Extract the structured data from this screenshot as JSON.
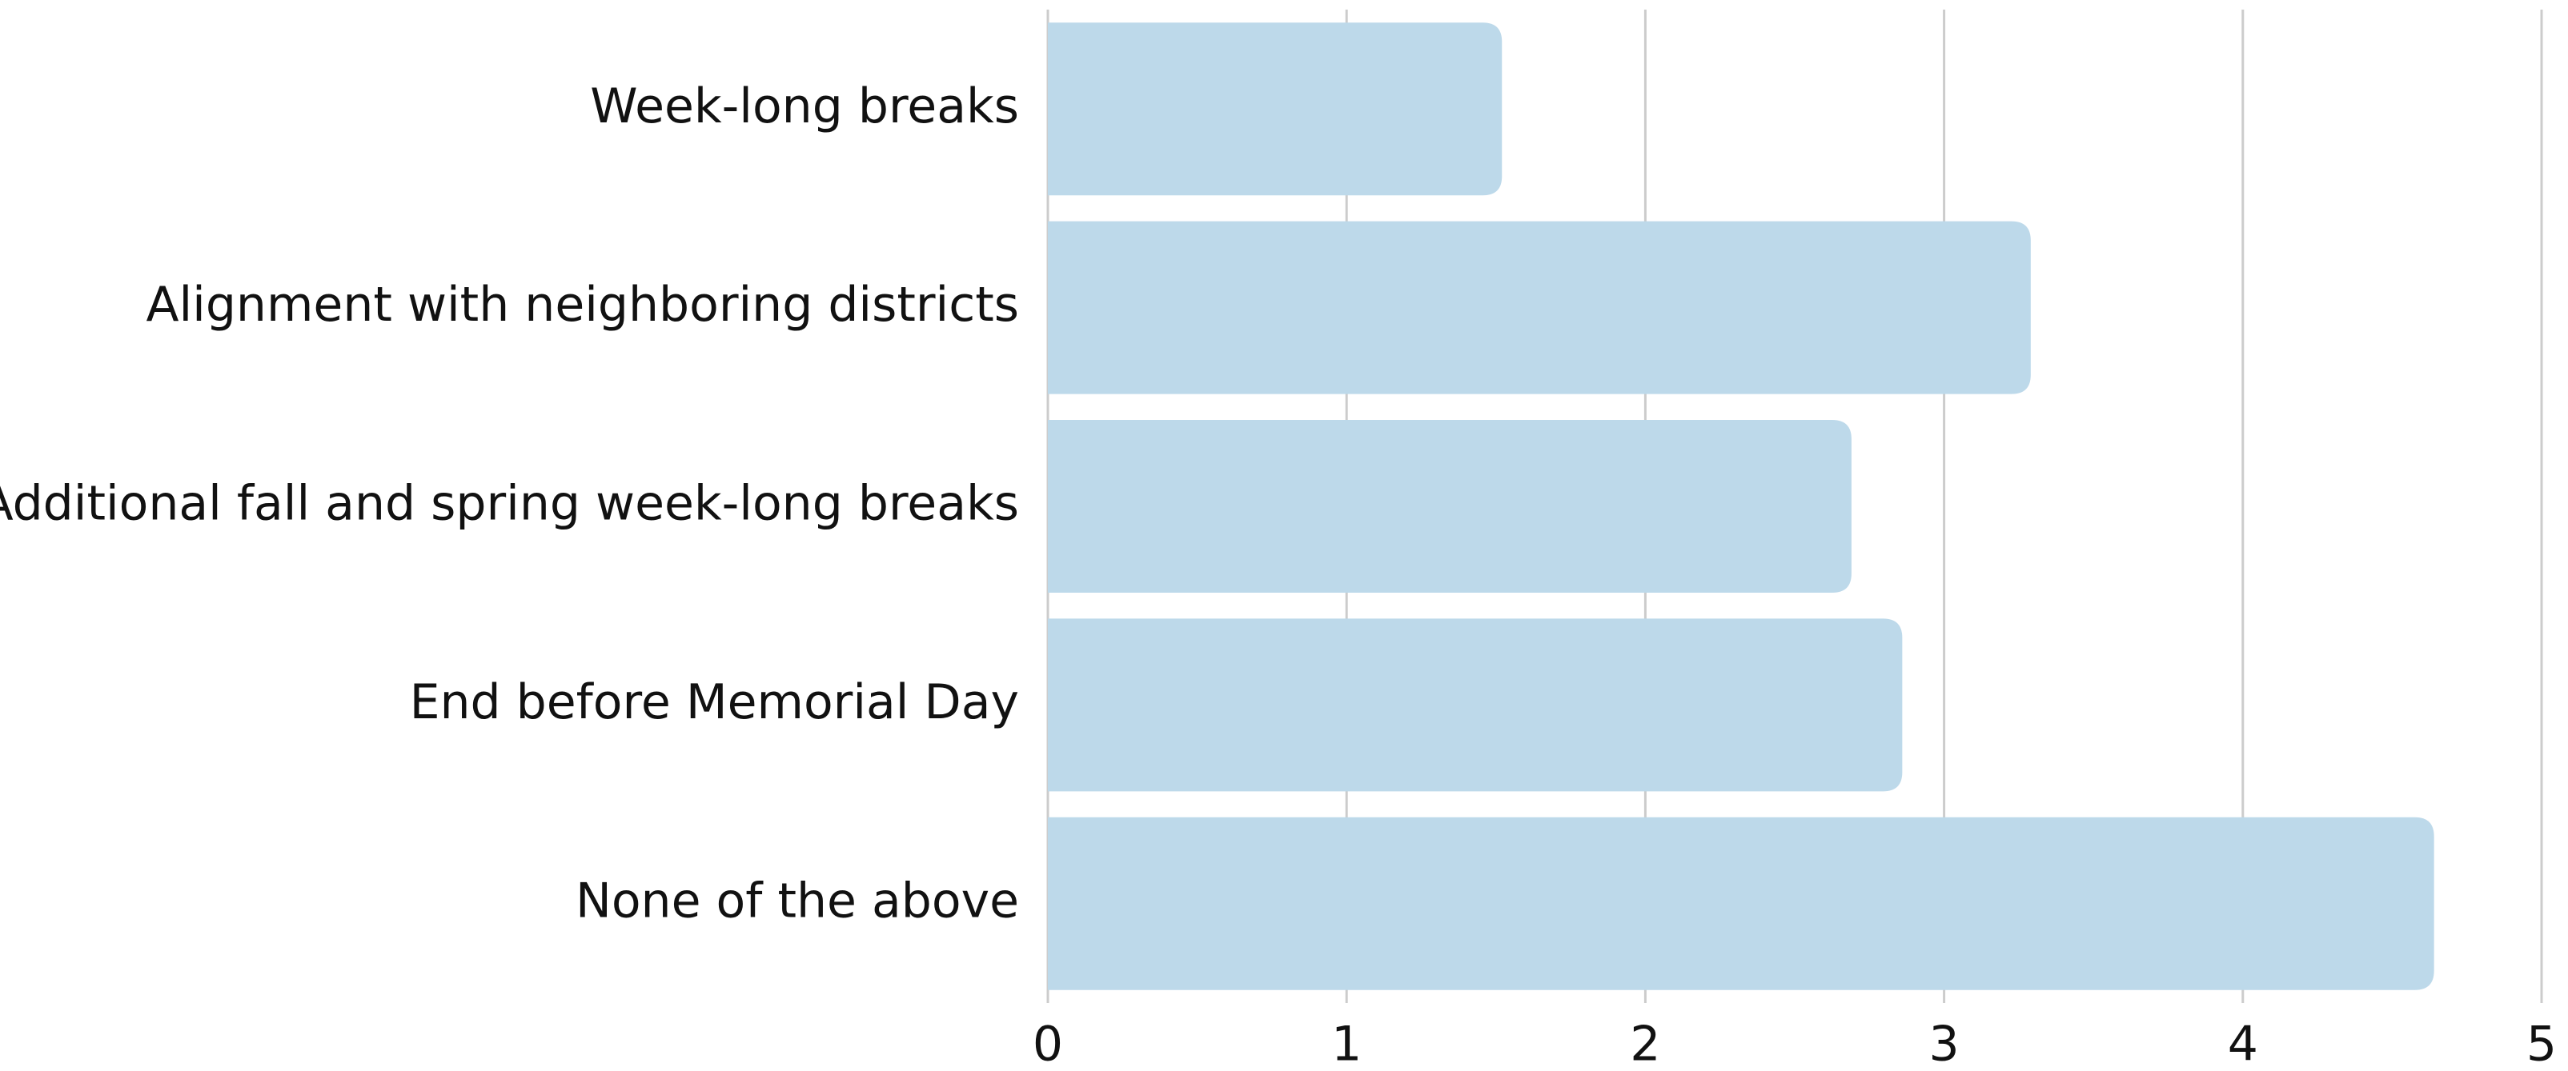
{
  "chart_data": {
    "type": "bar",
    "orientation": "horizontal",
    "categories": [
      "Week-long breaks",
      "Alignment with neighboring districts",
      "Additional fall and spring week-long breaks",
      "End before Memorial Day",
      "None of the above"
    ],
    "values": [
      1.52,
      3.29,
      2.69,
      2.86,
      4.64
    ],
    "color": "#bdd9ea",
    "xlim": [
      0,
      5
    ],
    "xticks": [
      0,
      1,
      2,
      3,
      4,
      5
    ],
    "grid": true
  }
}
